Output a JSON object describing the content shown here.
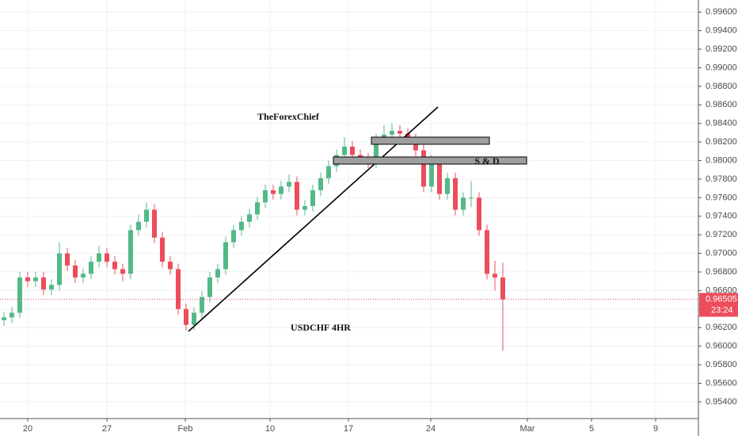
{
  "chart_data": {
    "type": "candlestick",
    "annotations": [
      "TheForexChief",
      "S & D",
      "USDCHF 4HR"
    ],
    "last_price": 0.96505,
    "countdown": "23:24",
    "up_color": "#53b987",
    "down_color": "#eb4d5c",
    "grid": true,
    "x": [
      0,
      1,
      2,
      3,
      4,
      5,
      6,
      7,
      8,
      9,
      10,
      11,
      12,
      13,
      14,
      15,
      16,
      17,
      18,
      19,
      20,
      21,
      22,
      23,
      24,
      25,
      26,
      27,
      28,
      29,
      30,
      31,
      32,
      33,
      34,
      35,
      36,
      37,
      38,
      39,
      40,
      41,
      42,
      43,
      44,
      45,
      46,
      47,
      48,
      49,
      50,
      51,
      52,
      53,
      54,
      55,
      56,
      57,
      58,
      59,
      60,
      61,
      62,
      63
    ],
    "open": [
      0.9628,
      0.9631,
      0.9636,
      0.9674,
      0.967,
      0.9674,
      0.9661,
      0.9666,
      0.97,
      0.9687,
      0.9674,
      0.9678,
      0.9691,
      0.97,
      0.9691,
      0.9683,
      0.9678,
      0.9725,
      0.9734,
      0.9747,
      0.9717,
      0.9691,
      0.9683,
      0.964,
      0.9623,
      0.9636,
      0.9653,
      0.9674,
      0.9683,
      0.9712,
      0.9725,
      0.9734,
      0.9742,
      0.9755,
      0.9768,
      0.9764,
      0.9772,
      0.9777,
      0.9747,
      0.9751,
      0.9768,
      0.9781,
      0.9794,
      0.9806,
      0.9815,
      0.9806,
      0.9802,
      0.9798,
      0.9823,
      0.9828,
      0.9832,
      0.9829,
      0.9823,
      0.9811,
      0.9772,
      0.9798,
      0.9764,
      0.9781,
      0.9747,
      0.976,
      0.976,
      0.9725,
      0.9678,
      0.9674
    ],
    "high": [
      0.9637,
      0.9642,
      0.968,
      0.968,
      0.968,
      0.968,
      0.9672,
      0.9712,
      0.9706,
      0.9693,
      0.9684,
      0.9697,
      0.9708,
      0.9706,
      0.9697,
      0.9689,
      0.9731,
      0.9742,
      0.9755,
      0.9753,
      0.9723,
      0.9697,
      0.9689,
      0.9646,
      0.9642,
      0.9659,
      0.968,
      0.9689,
      0.9718,
      0.9731,
      0.974,
      0.9748,
      0.9761,
      0.9774,
      0.9774,
      0.9778,
      0.9785,
      0.9783,
      0.9757,
      0.9774,
      0.9787,
      0.98,
      0.9812,
      0.9825,
      0.9821,
      0.9812,
      0.9808,
      0.9829,
      0.9838,
      0.984,
      0.9838,
      0.9835,
      0.9829,
      0.9817,
      0.9806,
      0.9804,
      0.9787,
      0.9787,
      0.9766,
      0.9778,
      0.9766,
      0.9731,
      0.9692,
      0.969
    ],
    "low": [
      0.9622,
      0.9625,
      0.963,
      0.9664,
      0.9664,
      0.9655,
      0.9655,
      0.966,
      0.9681,
      0.9668,
      0.9668,
      0.9672,
      0.9685,
      0.9685,
      0.9677,
      0.967,
      0.9672,
      0.9719,
      0.9728,
      0.9711,
      0.9685,
      0.9677,
      0.9634,
      0.9617,
      0.9617,
      0.963,
      0.9647,
      0.9668,
      0.9677,
      0.9706,
      0.9719,
      0.9728,
      0.9736,
      0.9749,
      0.9758,
      0.9758,
      0.9766,
      0.9741,
      0.9741,
      0.9745,
      0.9762,
      0.9775,
      0.9788,
      0.98,
      0.98,
      0.9796,
      0.9792,
      0.9792,
      0.9817,
      0.9822,
      0.9823,
      0.9817,
      0.9805,
      0.9766,
      0.9766,
      0.9758,
      0.9758,
      0.9741,
      0.9741,
      0.975,
      0.9719,
      0.9672,
      0.966,
      0.9595
    ],
    "close": [
      0.9631,
      0.9636,
      0.9674,
      0.967,
      0.9674,
      0.9661,
      0.9666,
      0.97,
      0.9687,
      0.9674,
      0.9678,
      0.9691,
      0.97,
      0.9691,
      0.9683,
      0.9678,
      0.9725,
      0.9734,
      0.9747,
      0.9717,
      0.9691,
      0.9683,
      0.964,
      0.9623,
      0.9636,
      0.9653,
      0.9674,
      0.9683,
      0.9712,
      0.9725,
      0.9734,
      0.9742,
      0.9755,
      0.9768,
      0.9764,
      0.9772,
      0.9777,
      0.9747,
      0.9751,
      0.9768,
      0.9781,
      0.9794,
      0.9806,
      0.9815,
      0.9806,
      0.9802,
      0.9798,
      0.9823,
      0.9828,
      0.9832,
      0.9829,
      0.9823,
      0.9811,
      0.9772,
      0.9798,
      0.9764,
      0.9781,
      0.9747,
      0.976,
      0.976,
      0.9725,
      0.9678,
      0.9674,
      0.96505
    ],
    "xlim": [
      -0.5,
      87.7
    ],
    "xticks": [
      {
        "value": 3,
        "label": "20"
      },
      {
        "value": 13,
        "label": "27"
      },
      {
        "value": 22.9,
        "label": "Feb"
      },
      {
        "value": 33.6,
        "label": "10"
      },
      {
        "value": 43.5,
        "label": "17"
      },
      {
        "value": 53.9,
        "label": "24"
      },
      {
        "value": 66.1,
        "label": "Mar"
      },
      {
        "value": 74.2,
        "label": "5"
      },
      {
        "value": 82.3,
        "label": "9"
      }
    ],
    "ylim": [
      0.9522,
      0.9973
    ],
    "yticks": [
      {
        "value": 0.954,
        "label": "0.95400"
      },
      {
        "value": 0.956,
        "label": "0.95600"
      },
      {
        "value": 0.958,
        "label": "0.95800"
      },
      {
        "value": 0.96,
        "label": "0.96000"
      },
      {
        "value": 0.962,
        "label": "0.96200"
      },
      {
        "value": 0.964,
        "label": "0.96400"
      },
      {
        "value": 0.966,
        "label": "0.96600"
      },
      {
        "value": 0.968,
        "label": "0.96800"
      },
      {
        "value": 0.97,
        "label": "0.97000"
      },
      {
        "value": 0.972,
        "label": "0.97200"
      },
      {
        "value": 0.974,
        "label": "0.97400"
      },
      {
        "value": 0.976,
        "label": "0.97600"
      },
      {
        "value": 0.978,
        "label": "0.97800"
      },
      {
        "value": 0.98,
        "label": "0.98000"
      },
      {
        "value": 0.982,
        "label": "0.98200"
      },
      {
        "value": 0.984,
        "label": "0.98400"
      },
      {
        "value": 0.986,
        "label": "0.98600"
      },
      {
        "value": 0.988,
        "label": "0.98800"
      },
      {
        "value": 0.99,
        "label": "0.99000"
      },
      {
        "value": 0.992,
        "label": "0.99200"
      },
      {
        "value": 0.994,
        "label": "0.99400"
      },
      {
        "value": 0.996,
        "label": "0.99600"
      }
    ]
  }
}
